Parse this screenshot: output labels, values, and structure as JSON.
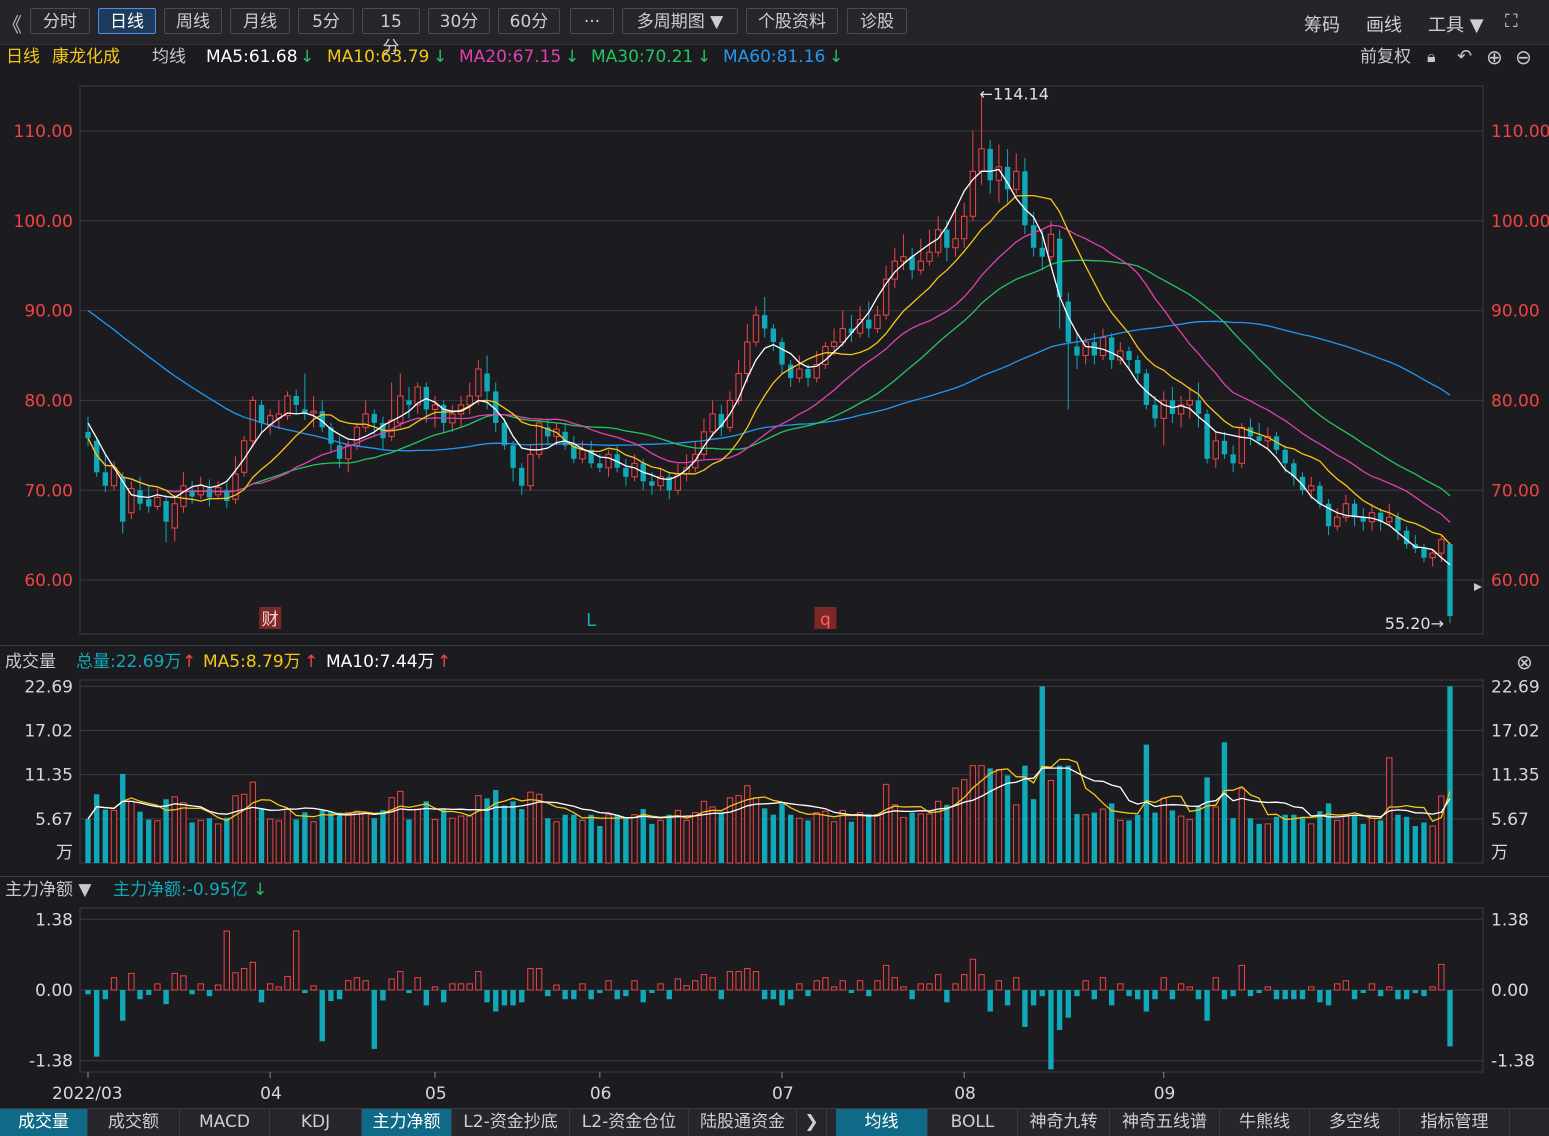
{
  "toolbar": {
    "back_glyph": "《",
    "buttons": [
      "分时",
      "日线",
      "周线",
      "月线",
      "5分",
      "15分",
      "30分",
      "60分",
      "···",
      "多周期图 ▼",
      "个股资料",
      "诊股"
    ],
    "active": "日线",
    "right": [
      "筹码",
      "画线",
      "工具 ▼",
      "⛶"
    ]
  },
  "info": {
    "period": "日线",
    "stock": "康龙化成",
    "ma_label": "均线",
    "ma5": "MA5:61.68",
    "ma10": "MA10:63.79",
    "ma20": "MA20:67.15",
    "ma30": "MA30:70.21",
    "ma60": "MA60:81.16",
    "fq": "前复权",
    "icons": [
      "lock-icon",
      "undo-icon",
      "plus-icon",
      "minus-icon"
    ]
  },
  "colors": {
    "up": "#ee4444",
    "down": "#11a8b8",
    "ma5": "#ffffff",
    "ma10": "#f5c518",
    "ma20": "#e040b0",
    "ma30": "#22c55e",
    "ma60": "#2196f3",
    "grid": "#3a3a40",
    "axis_red": "#ee4444"
  },
  "price_panel": {
    "y_ticks": [
      "110.00",
      "100.00",
      "90.00",
      "80.00",
      "70.00",
      "60.00"
    ],
    "y_tick_values": [
      110,
      100,
      90,
      80,
      70,
      60
    ],
    "ylim": [
      54,
      115
    ],
    "high_label": "←114.14",
    "low_label": "55.20→",
    "markers": [
      {
        "text": "财",
        "index": 21
      },
      {
        "text": "L",
        "index": 58
      },
      {
        "text": "q",
        "index": 85
      }
    ]
  },
  "volume_panel": {
    "title": "成交量",
    "total": "总量:22.69万",
    "ma5": "MA5:8.79万",
    "ma10": "MA10:7.44万",
    "y_ticks": [
      "22.69",
      "17.02",
      "11.35",
      "5.67",
      "万"
    ],
    "y_tick_values": [
      22.69,
      17.02,
      11.35,
      5.67
    ],
    "ylim": [
      0,
      23.5
    ]
  },
  "flow_panel": {
    "title": "主力净额 ▼",
    "value": "主力净额:-0.95亿",
    "y_ticks": [
      "1.38",
      "0.00",
      "-1.38"
    ],
    "y_tick_values": [
      1.38,
      0,
      -1.38
    ],
    "ylim": [
      -1.6,
      1.6
    ]
  },
  "x_axis": {
    "labels": [
      {
        "text": "2022/03",
        "index": 0
      },
      {
        "text": "04",
        "index": 21
      },
      {
        "text": "05",
        "index": 40
      },
      {
        "text": "06",
        "index": 59
      },
      {
        "text": "07",
        "index": 80
      },
      {
        "text": "08",
        "index": 101
      },
      {
        "text": "09",
        "index": 124
      }
    ]
  },
  "bottom_tabs": {
    "left": [
      "成交量",
      "成交额",
      "MACD",
      "KDJ",
      "主力净额",
      "L2-资金抄底",
      "L2-资金仓位",
      "陆股通资金"
    ],
    "left_active": [
      "成交量",
      "主力净额"
    ],
    "arrow": "❯",
    "right": [
      "均线",
      "BOLL",
      "神奇九转",
      "神奇五线谱",
      "牛熊线",
      "多空线",
      "指标管理"
    ],
    "right_active": "均线"
  },
  "chart_data": {
    "type": "candlestick",
    "candles": [
      [
        76.5,
        75.8,
        78.2,
        74.9
      ],
      [
        75.5,
        72.0,
        76.0,
        71.5
      ],
      [
        72.0,
        70.5,
        74.0,
        69.8
      ],
      [
        70.5,
        72.5,
        73.2,
        70.0
      ],
      [
        71.5,
        66.5,
        72.0,
        65.2
      ],
      [
        67.5,
        70.2,
        71.0,
        66.8
      ],
      [
        70.0,
        68.5,
        71.5,
        67.8
      ],
      [
        69.0,
        68.2,
        70.5,
        67.5
      ],
      [
        68.2,
        69.2,
        70.2,
        67.8
      ],
      [
        68.8,
        66.5,
        69.5,
        64.2
      ],
      [
        65.8,
        68.5,
        69.5,
        64.3
      ],
      [
        68.2,
        70.5,
        72.0,
        67.5
      ],
      [
        70.0,
        69.3,
        71.0,
        68.5
      ],
      [
        69.5,
        70.5,
        71.5,
        69.0
      ],
      [
        70.2,
        69.2,
        71.2,
        68.2
      ],
      [
        69.5,
        70.3,
        71.0,
        69.0
      ],
      [
        70.0,
        68.8,
        70.8,
        68.0
      ],
      [
        69.0,
        71.8,
        73.8,
        68.5
      ],
      [
        72.0,
        75.5,
        76.0,
        71.5
      ],
      [
        75.5,
        80.0,
        80.5,
        74.8
      ],
      [
        79.5,
        77.5,
        80.0,
        76.5
      ],
      [
        77.3,
        78.3,
        79.0,
        76.2
      ],
      [
        78.0,
        78.5,
        80.0,
        76.8
      ],
      [
        78.3,
        80.5,
        81.0,
        77.8
      ],
      [
        80.5,
        79.5,
        81.2,
        78.5
      ],
      [
        79.0,
        78.5,
        83.0,
        77.8
      ],
      [
        78.6,
        78.8,
        80.5,
        77.0
      ],
      [
        78.8,
        77.0,
        80.0,
        76.5
      ],
      [
        77.0,
        75.2,
        77.5,
        74.3
      ],
      [
        75.0,
        73.5,
        76.0,
        72.5
      ],
      [
        73.5,
        75.0,
        75.5,
        72.0
      ],
      [
        75.0,
        77.0,
        77.5,
        74.5
      ],
      [
        77.0,
        78.5,
        80.0,
        76.5
      ],
      [
        78.5,
        77.5,
        79.0,
        76.0
      ],
      [
        77.5,
        75.8,
        78.2,
        74.5
      ],
      [
        76.0,
        77.8,
        82.0,
        75.5
      ],
      [
        77.5,
        80.5,
        83.0,
        77.0
      ],
      [
        80.0,
        79.5,
        81.5,
        78.0
      ],
      [
        79.5,
        81.5,
        82.0,
        78.5
      ],
      [
        81.5,
        79.0,
        82.0,
        77.5
      ],
      [
        79.0,
        79.5,
        80.5,
        77.0
      ],
      [
        79.5,
        77.5,
        80.0,
        76.5
      ],
      [
        77.5,
        78.5,
        79.5,
        76.5
      ],
      [
        78.5,
        79.5,
        80.5,
        77.0
      ],
      [
        79.5,
        80.5,
        82.0,
        78.5
      ],
      [
        80.5,
        83.5,
        84.5,
        79.5
      ],
      [
        83.0,
        81.0,
        85.0,
        79.0
      ],
      [
        81.0,
        77.5,
        82.0,
        76.5
      ],
      [
        77.5,
        75.0,
        78.0,
        74.5
      ],
      [
        75.0,
        72.5,
        75.5,
        71.0
      ],
      [
        72.5,
        70.5,
        73.0,
        69.5
      ],
      [
        70.5,
        74.0,
        75.0,
        70.0
      ],
      [
        74.0,
        77.5,
        78.0,
        73.5
      ],
      [
        77.0,
        76.0,
        78.0,
        75.0
      ],
      [
        76.0,
        76.8,
        77.5,
        75.0
      ],
      [
        76.5,
        75.0,
        77.5,
        74.5
      ],
      [
        75.0,
        73.5,
        76.0,
        73.0
      ],
      [
        73.5,
        74.5,
        75.5,
        73.0
      ],
      [
        74.5,
        73.0,
        75.5,
        72.5
      ],
      [
        73.0,
        72.5,
        74.0,
        72.0
      ],
      [
        72.5,
        74.0,
        74.5,
        71.5
      ],
      [
        74.0,
        72.5,
        75.0,
        72.0
      ],
      [
        72.5,
        71.5,
        73.5,
        70.5
      ],
      [
        71.5,
        73.0,
        74.0,
        71.0
      ],
      [
        73.0,
        71.0,
        73.5,
        70.0
      ],
      [
        71.0,
        70.5,
        72.0,
        69.5
      ],
      [
        70.5,
        71.5,
        72.5,
        70.0
      ],
      [
        71.5,
        70.0,
        72.0,
        69.0
      ],
      [
        70.0,
        71.8,
        73.0,
        69.5
      ],
      [
        71.8,
        72.5,
        74.0,
        71.0
      ],
      [
        72.5,
        74.0,
        75.5,
        72.0
      ],
      [
        74.0,
        76.5,
        78.0,
        73.5
      ],
      [
        76.5,
        78.5,
        80.0,
        76.0
      ],
      [
        78.5,
        77.0,
        79.5,
        76.0
      ],
      [
        77.0,
        80.0,
        81.0,
        76.5
      ],
      [
        80.0,
        83.0,
        84.5,
        79.5
      ],
      [
        83.0,
        86.5,
        88.5,
        82.0
      ],
      [
        86.5,
        89.5,
        90.5,
        86.0
      ],
      [
        89.5,
        88.0,
        91.5,
        87.0
      ],
      [
        88.0,
        86.5,
        88.5,
        85.5
      ],
      [
        86.5,
        84.0,
        87.0,
        83.0
      ],
      [
        84.0,
        82.5,
        84.5,
        81.5
      ],
      [
        82.5,
        83.5,
        85.0,
        82.0
      ],
      [
        83.5,
        82.5,
        84.0,
        81.5
      ],
      [
        82.5,
        84.0,
        85.5,
        82.0
      ],
      [
        84.0,
        86.0,
        86.5,
        83.5
      ],
      [
        86.0,
        86.5,
        88.0,
        85.0
      ],
      [
        86.5,
        88.0,
        90.0,
        86.0
      ],
      [
        88.0,
        87.5,
        89.5,
        86.5
      ],
      [
        87.5,
        89.0,
        90.5,
        87.0
      ],
      [
        89.0,
        88.0,
        91.0,
        87.0
      ],
      [
        88.0,
        89.5,
        90.5,
        87.5
      ],
      [
        89.5,
        93.5,
        95.0,
        89.0
      ],
      [
        93.5,
        95.5,
        97.0,
        92.5
      ],
      [
        95.5,
        96.0,
        98.5,
        94.5
      ],
      [
        96.0,
        94.5,
        97.0,
        93.5
      ],
      [
        94.5,
        95.5,
        98.0,
        94.0
      ],
      [
        95.5,
        96.5,
        99.0,
        95.0
      ],
      [
        96.5,
        99.0,
        100.5,
        96.0
      ],
      [
        99.0,
        97.0,
        100.0,
        95.5
      ],
      [
        97.0,
        98.0,
        101.5,
        96.0
      ],
      [
        98.0,
        100.5,
        102.0,
        97.0
      ],
      [
        100.5,
        105.5,
        110.0,
        100.0
      ],
      [
        105.5,
        108.0,
        114.14,
        104.0
      ],
      [
        108.0,
        104.5,
        109.0,
        103.0
      ],
      [
        104.5,
        106.0,
        108.5,
        102.0
      ],
      [
        106.0,
        103.5,
        108.0,
        102.0
      ],
      [
        103.5,
        105.5,
        107.5,
        103.0
      ],
      [
        105.5,
        99.5,
        107.0,
        98.5
      ],
      [
        99.5,
        97.0,
        101.0,
        96.0
      ],
      [
        97.0,
        96.0,
        99.0,
        94.5
      ],
      [
        96.0,
        98.5,
        100.0,
        95.5
      ],
      [
        98.0,
        91.5,
        99.0,
        88.0
      ],
      [
        91.0,
        86.5,
        92.0,
        79.0
      ],
      [
        86.0,
        85.0,
        87.5,
        83.5
      ],
      [
        85.0,
        86.5,
        87.0,
        84.0
      ],
      [
        86.5,
        85.0,
        87.5,
        84.0
      ],
      [
        85.0,
        87.0,
        88.0,
        84.5
      ],
      [
        87.0,
        84.5,
        87.5,
        83.5
      ],
      [
        84.5,
        85.5,
        86.5,
        84.0
      ],
      [
        85.5,
        84.5,
        86.0,
        83.5
      ],
      [
        84.5,
        83.0,
        85.0,
        82.0
      ],
      [
        83.0,
        79.5,
        83.5,
        79.0
      ],
      [
        79.5,
        78.0,
        80.5,
        77.0
      ],
      [
        78.0,
        80.0,
        81.0,
        75.0
      ],
      [
        80.0,
        78.5,
        81.5,
        77.5
      ],
      [
        78.5,
        79.5,
        80.5,
        77.0
      ],
      [
        79.5,
        80.0,
        81.5,
        78.0
      ],
      [
        80.0,
        78.5,
        82.0,
        77.0
      ],
      [
        78.5,
        73.5,
        79.0,
        73.0
      ],
      [
        73.5,
        75.5,
        76.5,
        72.5
      ],
      [
        75.5,
        74.0,
        76.5,
        73.5
      ],
      [
        74.0,
        73.0,
        75.0,
        72.0
      ],
      [
        73.0,
        77.0,
        77.5,
        72.5
      ],
      [
        77.0,
        76.0,
        78.0,
        75.0
      ],
      [
        76.0,
        75.5,
        77.5,
        75.0
      ],
      [
        75.5,
        76.0,
        77.0,
        74.5
      ],
      [
        76.0,
        74.5,
        76.5,
        74.0
      ],
      [
        74.5,
        73.0,
        75.0,
        72.0
      ],
      [
        73.0,
        71.5,
        73.5,
        70.5
      ],
      [
        71.5,
        70.0,
        72.0,
        69.5
      ],
      [
        70.0,
        70.5,
        71.5,
        69.0
      ],
      [
        70.5,
        68.5,
        71.0,
        68.0
      ],
      [
        68.5,
        66.0,
        69.0,
        65.0
      ],
      [
        66.0,
        67.0,
        68.0,
        65.5
      ],
      [
        67.0,
        68.5,
        69.5,
        66.5
      ],
      [
        68.5,
        67.0,
        69.0,
        66.0
      ],
      [
        67.0,
        66.5,
        68.0,
        65.5
      ],
      [
        66.5,
        67.5,
        68.5,
        65.5
      ],
      [
        67.5,
        66.5,
        68.0,
        65.5
      ],
      [
        66.5,
        67.0,
        68.5,
        66.0
      ],
      [
        67.0,
        65.5,
        67.5,
        64.5
      ],
      [
        65.5,
        64.0,
        66.0,
        63.5
      ],
      [
        64.0,
        63.5,
        65.0,
        63.0
      ],
      [
        63.5,
        62.5,
        64.0,
        62.0
      ],
      [
        62.5,
        63.0,
        63.5,
        61.5
      ],
      [
        63.0,
        64.5,
        65.0,
        62.0
      ],
      [
        64.0,
        56.0,
        64.2,
        55.2
      ]
    ],
    "ma5": [
      77.5,
      75.8,
      74.0,
      72.5,
      71.0,
      69.5,
      69.3,
      69.2,
      69.5,
      69.3,
      69.2,
      69.8,
      70.4,
      70.6,
      70.3,
      70.5,
      71.0,
      72.2,
      73.5,
      75.0,
      76.4,
      77.3,
      78.0,
      78.6,
      78.5,
      78.6,
      78.3,
      77.7,
      76.8,
      76.2,
      75.7,
      75.6,
      76.0,
      76.5,
      77.2,
      77.7,
      78.2,
      78.8,
      79.7,
      80.2,
      79.8,
      79.0,
      78.8,
      78.8,
      79.3,
      80.0,
      79.8,
      79.0,
      77.8,
      76.0,
      74.7,
      74.5,
      74.5,
      74.7,
      75.3,
      75.5,
      75.2,
      74.6,
      74.2,
      73.7,
      73.6,
      73.2,
      72.7,
      72.5,
      72.0,
      71.7,
      71.3,
      71.2,
      71.6,
      72.3,
      73.3,
      74.9,
      76.2,
      77.2,
      78.5,
      80.2,
      82.5,
      84.5,
      85.8,
      86.2,
      85.7,
      85.2,
      84.2,
      83.7,
      83.8,
      84.5,
      85.4,
      86.3,
      87.5,
      88.6,
      89.8,
      91.5,
      93.0,
      94.3,
      95.2,
      96.0,
      96.7,
      97.4,
      98.0,
      99.4,
      101.3,
      103.3,
      104.6,
      105.5,
      105.5,
      105.7,
      104.2,
      102.5,
      101.3,
      100.4,
      98.5,
      95.0,
      91.6,
      89.3,
      87.5,
      86.0,
      85.9,
      85.7,
      85.3,
      84.8,
      83.5,
      82.0,
      81.0,
      80.2,
      79.5,
      79.2,
      79.4,
      79.1,
      78.2,
      77.4,
      76.5,
      76.3,
      76.1,
      75.9,
      75.8,
      75.2,
      74.6,
      73.6,
      72.3,
      71.6,
      70.6,
      69.3,
      68.5,
      68.0,
      67.5,
      67.2,
      67.1,
      67.0,
      66.9,
      66.6,
      66.1,
      65.3,
      64.5,
      63.7,
      63.6,
      63.4,
      62.5,
      61.7
    ]
  }
}
